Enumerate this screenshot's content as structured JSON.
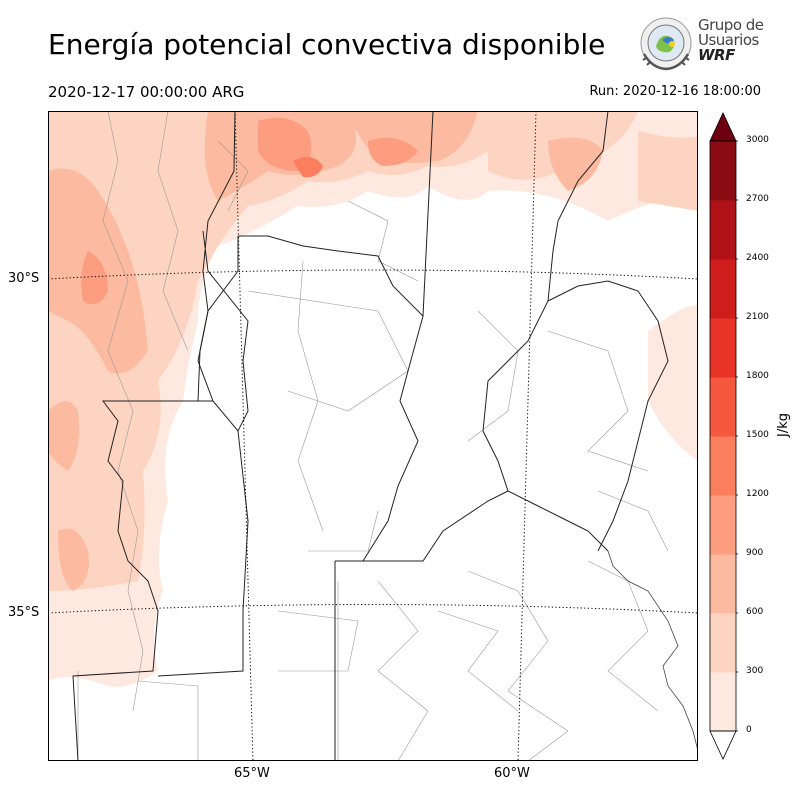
{
  "title": "Energía potencial convectiva disponible",
  "valid_time": "2020-12-17 00:00:00 ARG",
  "run_time": "Run: 2020-12-16 18:00:00",
  "logo": {
    "line1": "Grupo de",
    "line2": "Usuarios",
    "line3": "WRF"
  },
  "lat_labels": [
    "30°S",
    "35°S"
  ],
  "lon_labels": [
    "65°W",
    "60°W"
  ],
  "colorbar": {
    "unit": "J/kg",
    "ticks": [
      "0",
      "300",
      "600",
      "900",
      "1200",
      "1500",
      "1800",
      "2100",
      "2400",
      "2700",
      "3000"
    ],
    "colors": [
      "#fee9e0",
      "#fdd4c2",
      "#fcbba1",
      "#fc9d7f",
      "#fb7e5e",
      "#f6583e",
      "#e83328",
      "#cf1c1d",
      "#b11218",
      "#8b0b12",
      "#6e0010"
    ]
  }
}
